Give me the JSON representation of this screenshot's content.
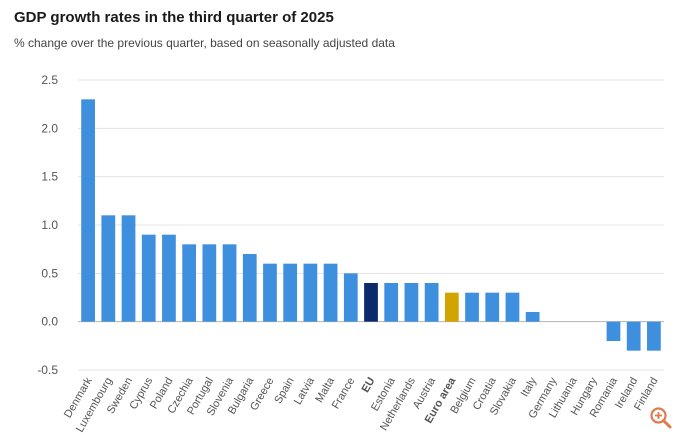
{
  "chart_data": {
    "type": "bar",
    "title": "GDP growth rates in the third quarter of 2025",
    "subtitle": "% change over the previous quarter, based on seasonally adjusted data",
    "xlabel": "",
    "ylabel": "",
    "ylim": [
      -0.5,
      2.5
    ],
    "yticks": [
      "2.5",
      "2.0",
      "1.5",
      "1.0",
      "0.5",
      "0.0",
      "-0.5"
    ],
    "ytick_values": [
      2.5,
      2.0,
      1.5,
      1.0,
      0.5,
      0.0,
      -0.5
    ],
    "grid": true,
    "categories": [
      "Denmark",
      "Luxembourg",
      "Sweden",
      "Cyprus",
      "Poland",
      "Czechia",
      "Portugal",
      "Slovenia",
      "Bulgaria",
      "Greece",
      "Spain",
      "Latvia",
      "Malta",
      "France",
      "EU",
      "Estonia",
      "Netherlands",
      "Austria",
      "Euro area",
      "Belgium",
      "Croatia",
      "Slovakia",
      "Italy",
      "Germany",
      "Lithuania",
      "Hungary",
      "Romania",
      "Ireland",
      "Finland"
    ],
    "values": [
      2.3,
      1.1,
      1.1,
      0.9,
      0.9,
      0.8,
      0.8,
      0.8,
      0.7,
      0.6,
      0.6,
      0.6,
      0.6,
      0.5,
      0.4,
      0.4,
      0.4,
      0.4,
      0.3,
      0.3,
      0.3,
      0.3,
      0.1,
      0.0,
      0.0,
      0.0,
      -0.2,
      -0.3,
      -0.3
    ],
    "highlight": {
      "EU": "#0b2a6b",
      "Euro area": "#d1a400"
    },
    "bold_labels": [
      "EU",
      "Euro area"
    ]
  },
  "colors": {
    "bar": "#3f8fdf",
    "eu": "#0b2a6b",
    "euro_area": "#d1a400",
    "grid": "#e3e3e3",
    "axis": "#b5b5b5",
    "text": "#555555"
  },
  "icons": {
    "zoom": "zoom-in-icon"
  }
}
